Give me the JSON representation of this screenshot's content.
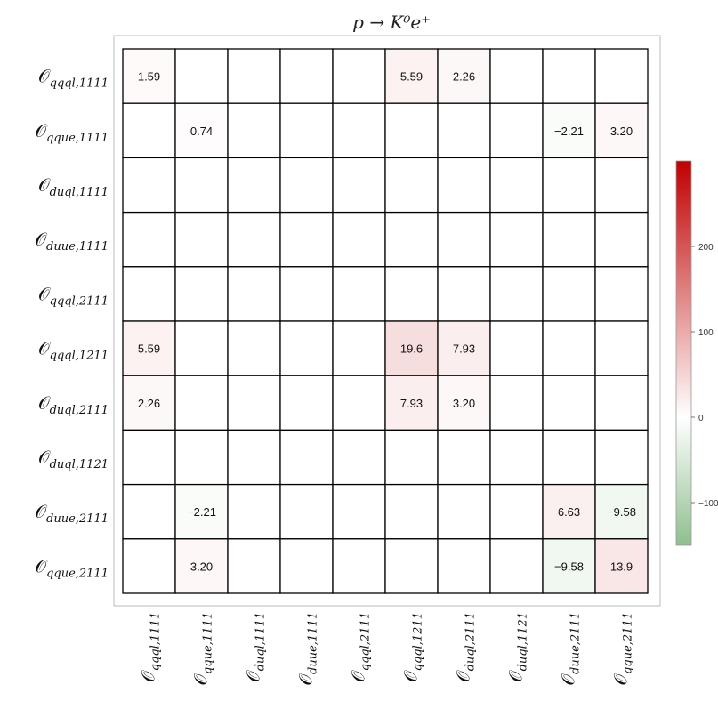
{
  "chart_data": {
    "type": "heatmap",
    "title": "p → K⁰e⁺",
    "row_labels": [
      {
        "sym": "𝒪",
        "sub": "qqql,1111"
      },
      {
        "sym": "𝒪",
        "sub": "qque,1111"
      },
      {
        "sym": "𝒪",
        "sub": "duql,1111"
      },
      {
        "sym": "𝒪",
        "sub": "duue,1111"
      },
      {
        "sym": "𝒪",
        "sub": "qqql,2111"
      },
      {
        "sym": "𝒪",
        "sub": "qqql,1211"
      },
      {
        "sym": "𝒪",
        "sub": "duql,2111"
      },
      {
        "sym": "𝒪",
        "sub": "duql,1121"
      },
      {
        "sym": "𝒪",
        "sub": "duue,2111"
      },
      {
        "sym": "𝒪",
        "sub": "qque,2111"
      }
    ],
    "col_labels": [
      {
        "sym": "𝒪",
        "sub": "qqql,1111"
      },
      {
        "sym": "𝒪",
        "sub": "qque,1111"
      },
      {
        "sym": "𝒪",
        "sub": "duql,1111"
      },
      {
        "sym": "𝒪",
        "sub": "duue,1111"
      },
      {
        "sym": "𝒪",
        "sub": "qqql,2111"
      },
      {
        "sym": "𝒪",
        "sub": "qqql,1211"
      },
      {
        "sym": "𝒪",
        "sub": "duql,2111"
      },
      {
        "sym": "𝒪",
        "sub": "duql,1121"
      },
      {
        "sym": "𝒪",
        "sub": "duue,2111"
      },
      {
        "sym": "𝒪",
        "sub": "qque,2111"
      }
    ],
    "values": [
      [
        1.59,
        null,
        null,
        null,
        null,
        5.59,
        2.26,
        null,
        null,
        null
      ],
      [
        null,
        0.74,
        null,
        null,
        null,
        null,
        null,
        null,
        -2.21,
        3.2
      ],
      [
        null,
        null,
        null,
        null,
        null,
        null,
        null,
        null,
        null,
        null
      ],
      [
        null,
        null,
        null,
        null,
        null,
        null,
        null,
        null,
        null,
        null
      ],
      [
        null,
        null,
        null,
        null,
        null,
        null,
        null,
        null,
        null,
        null
      ],
      [
        5.59,
        null,
        null,
        null,
        null,
        19.6,
        7.93,
        null,
        null,
        null
      ],
      [
        2.26,
        null,
        null,
        null,
        null,
        7.93,
        3.2,
        null,
        null,
        null
      ],
      [
        null,
        null,
        null,
        null,
        null,
        null,
        null,
        null,
        null,
        null
      ],
      [
        null,
        -2.21,
        null,
        null,
        null,
        null,
        null,
        null,
        6.63,
        -9.58
      ],
      [
        null,
        3.2,
        null,
        null,
        null,
        null,
        null,
        null,
        -9.58,
        13.9
      ]
    ],
    "value_labels": [
      [
        "1.59",
        "",
        "",
        "",
        "",
        "5.59",
        "2.26",
        "",
        "",
        ""
      ],
      [
        "",
        "0.74",
        "",
        "",
        "",
        "",
        "",
        "",
        "−2.21",
        "3.20"
      ],
      [
        "",
        "",
        "",
        "",
        "",
        "",
        "",
        "",
        "",
        ""
      ],
      [
        "",
        "",
        "",
        "",
        "",
        "",
        "",
        "",
        "",
        ""
      ],
      [
        "",
        "",
        "",
        "",
        "",
        "",
        "",
        "",
        "",
        ""
      ],
      [
        "5.59",
        "",
        "",
        "",
        "",
        "19.6",
        "7.93",
        "",
        "",
        ""
      ],
      [
        "2.26",
        "",
        "",
        "",
        "",
        "7.93",
        "3.20",
        "",
        "",
        ""
      ],
      [
        "",
        "",
        "",
        "",
        "",
        "",
        "",
        "",
        "",
        ""
      ],
      [
        "",
        "−2.21",
        "",
        "",
        "",
        "",
        "",
        "",
        "6.63",
        "−9.58"
      ],
      [
        "",
        "3.20",
        "",
        "",
        "",
        "",
        "",
        "",
        "−9.58",
        "13.9"
      ]
    ],
    "colorbar": {
      "min": -150,
      "max": 300,
      "ticks": [
        -100,
        0,
        100,
        200
      ],
      "tick_labels": [
        "−100",
        "0",
        "100",
        "200"
      ],
      "colors": {
        "negative": "#8fbf8f",
        "zero": "#ffffff",
        "positive": "#c00000"
      }
    }
  }
}
